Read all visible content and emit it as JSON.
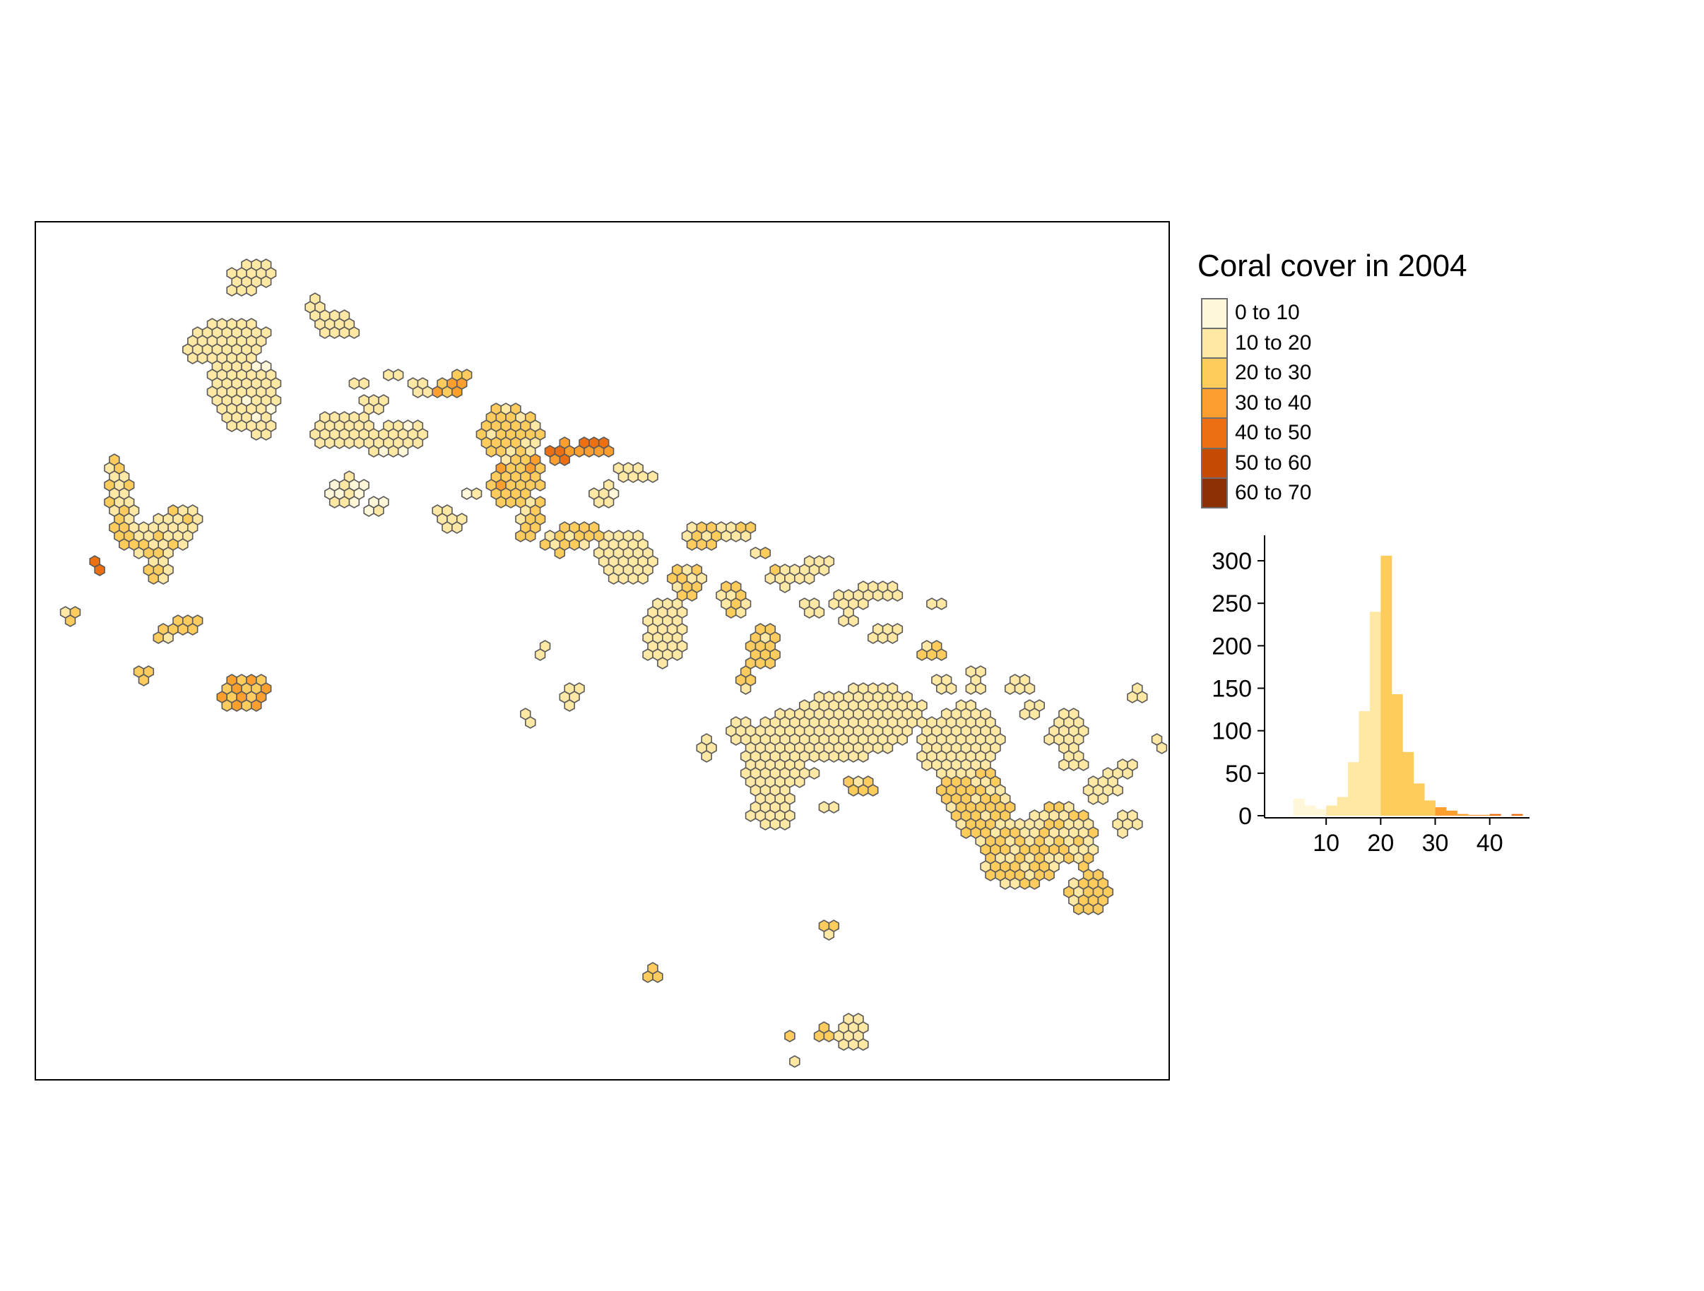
{
  "legend": {
    "title": "Coral cover in 2004",
    "classes": [
      {
        "label": "0 to 10",
        "color": "#FFF7D8"
      },
      {
        "label": "10 to 20",
        "color": "#FEE8A3"
      },
      {
        "label": "20 to 30",
        "color": "#FECC5C"
      },
      {
        "label": "30 to 40",
        "color": "#FD9F2E"
      },
      {
        "label": "40 to 50",
        "color": "#EC6F12"
      },
      {
        "label": "50 to 60",
        "color": "#C64A02"
      },
      {
        "label": "60 to 70",
        "color": "#8B2F04"
      }
    ]
  },
  "map": {
    "hex_stroke": "#595959",
    "background": "#ffffff"
  },
  "chart_data": {
    "type": "bar",
    "x": [
      2,
      4,
      6,
      8,
      10,
      12,
      14,
      16,
      18,
      20,
      22,
      24,
      26,
      28,
      30,
      32,
      34,
      36,
      38,
      40,
      42,
      44
    ],
    "values": [
      0,
      20,
      12,
      8,
      12,
      22,
      63,
      123,
      240,
      306,
      143,
      75,
      38,
      18,
      10,
      6,
      2,
      1,
      1,
      2,
      0,
      2
    ],
    "xticks": [
      "10",
      "20",
      "30",
      "40"
    ],
    "yticks": [
      "0",
      "50",
      "100",
      "150",
      "200",
      "250",
      "300"
    ],
    "xlim": [
      0,
      46
    ],
    "ylim": [
      0,
      320
    ],
    "bar_colors_by_class": true,
    "title": "",
    "xlabel": "",
    "ylabel": ""
  }
}
